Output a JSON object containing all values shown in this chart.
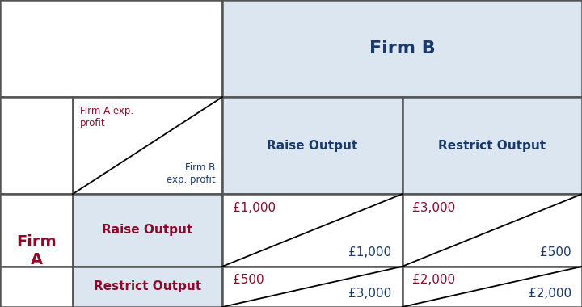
{
  "title_firmB": "Firm B",
  "title_firmA": "Firm\nA",
  "header_color": "#1a3a6b",
  "firm_a_color": "#8b0a2a",
  "firm_b_color": "#1a3a6b",
  "cell_bg": "#dce6f1",
  "white": "#ffffff",
  "grid_color": "#555555",
  "cells": {
    "raise_raise": {
      "firmA": "£1,000",
      "firmB": "£1,000"
    },
    "raise_restrict": {
      "firmA": "£3,000",
      "firmB": "£500"
    },
    "restrict_raise": {
      "firmA": "£500",
      "firmB": "£3,000"
    },
    "restrict_restrict": {
      "firmA": "£2,000",
      "firmB": "£2,000"
    }
  },
  "label_raise": "Raise Output",
  "label_restrict": "Restrict Output",
  "legend_firmA": "Firm A exp.\nprofit",
  "legend_firmB": "Firm B\nexp. profit",
  "col_splits": [
    0.0,
    0.125,
    0.382,
    0.691,
    1.0
  ],
  "row_splits": [
    0.0,
    0.132,
    0.368,
    0.684,
    1.0
  ]
}
